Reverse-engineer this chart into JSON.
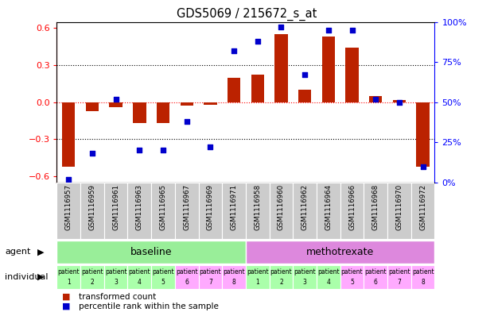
{
  "title": "GDS5069 / 215672_s_at",
  "samples": [
    "GSM1116957",
    "GSM1116959",
    "GSM1116961",
    "GSM1116963",
    "GSM1116965",
    "GSM1116967",
    "GSM1116969",
    "GSM1116971",
    "GSM1116958",
    "GSM1116960",
    "GSM1116962",
    "GSM1116964",
    "GSM1116966",
    "GSM1116968",
    "GSM1116970",
    "GSM1116972"
  ],
  "transformed_count": [
    -0.52,
    -0.07,
    -0.04,
    -0.17,
    -0.17,
    -0.03,
    -0.02,
    0.2,
    0.22,
    0.55,
    0.1,
    0.53,
    0.44,
    0.05,
    0.02,
    -0.52
  ],
  "percentile_rank": [
    2,
    18,
    52,
    20,
    20,
    38,
    22,
    82,
    88,
    97,
    67,
    95,
    95,
    52,
    50,
    10
  ],
  "groups": [
    {
      "label": "baseline",
      "start": 0,
      "end": 8,
      "color": "#99ee99"
    },
    {
      "label": "methotrexate",
      "start": 8,
      "end": 16,
      "color": "#dd88dd"
    }
  ],
  "patient_labels": [
    1,
    2,
    3,
    4,
    5,
    6,
    7,
    8,
    1,
    2,
    3,
    4,
    5,
    6,
    7,
    8
  ],
  "baseline_indiv_colors": [
    "#aaffaa",
    "#aaffaa",
    "#aaffaa",
    "#aaffaa",
    "#aaffaa",
    "#ffaaff",
    "#ffaaff",
    "#ffaaff"
  ],
  "methotrexate_indiv_colors": [
    "#aaffaa",
    "#aaffaa",
    "#aaffaa",
    "#aaffaa",
    "#ffaaff",
    "#ffaaff",
    "#ffaaff",
    "#ffaaff"
  ],
  "bar_color": "#bb2200",
  "dot_color": "#0000cc",
  "ylim": [
    -0.65,
    0.65
  ],
  "y2lim": [
    0,
    100
  ],
  "yticks": [
    -0.6,
    -0.3,
    0,
    0.3,
    0.6
  ],
  "y2ticks": [
    0,
    25,
    50,
    75,
    100
  ],
  "bar_width": 0.55,
  "legend_items": [
    {
      "label": "transformed count",
      "color": "#bb2200"
    },
    {
      "label": "percentile rank within the sample",
      "color": "#0000cc"
    }
  ]
}
